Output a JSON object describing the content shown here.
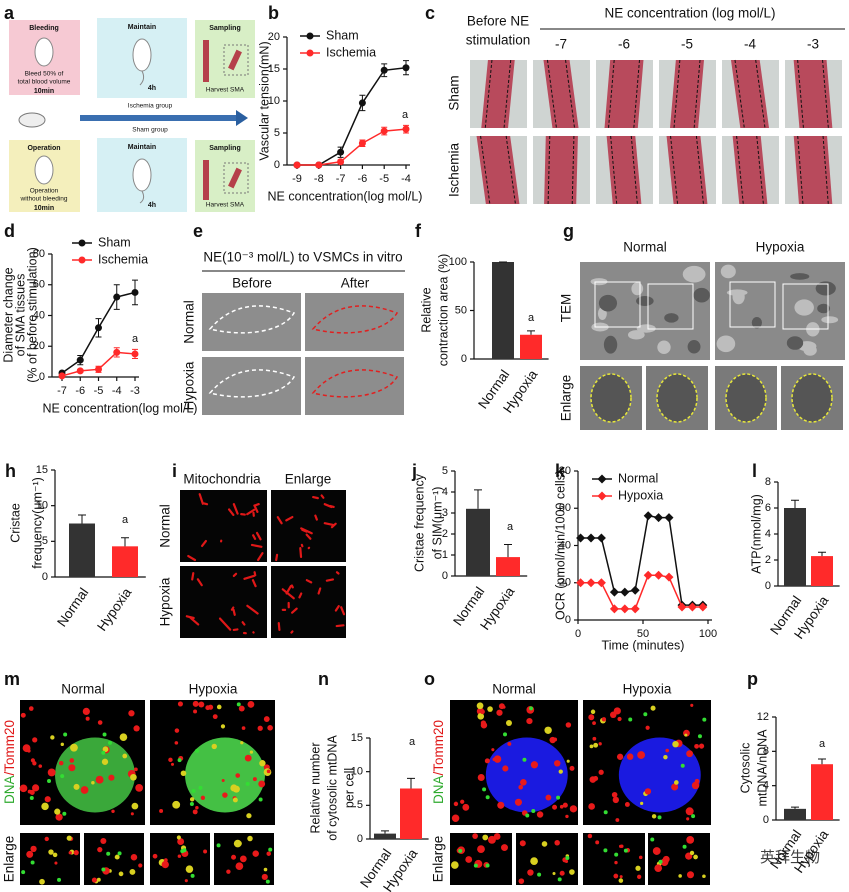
{
  "chart_data": [
    {
      "panel_label": "b",
      "type": "line",
      "marker": "circle",
      "xlabel": "NE concentration(log mol/L)",
      "ylabel": [
        "Vascular tension(mN)"
      ],
      "x": [
        -9,
        -8,
        -7,
        -6,
        -5,
        -4
      ],
      "xlim": [
        -9,
        -4
      ],
      "xticks": [
        -9,
        -8,
        -7,
        -6,
        -5,
        -4
      ],
      "ylim": [
        0,
        20
      ],
      "yticks": [
        0,
        5,
        10,
        15,
        20
      ],
      "series": [
        {
          "name": "Sham",
          "color": "#111111",
          "values": [
            0,
            0,
            2,
            9.7,
            14.8,
            15.2
          ],
          "errors": [
            0,
            0,
            0.8,
            1.2,
            1,
            1.1
          ]
        },
        {
          "name": "Ischemia",
          "color": "#ff2a2a",
          "values": [
            0,
            0,
            0.5,
            3.4,
            5.3,
            5.6
          ],
          "errors": [
            0,
            0,
            0.3,
            0.5,
            0.6,
            0.6
          ]
        }
      ],
      "annotation": "a",
      "legend": "upper left"
    },
    {
      "panel_label": "d",
      "type": "line",
      "marker": "circle",
      "xlabel": "NE concentration(log mol/L)",
      "ylabel": [
        "Diameter change",
        "of SMA tissues",
        "(% of before stimulation)"
      ],
      "x": [
        -7,
        -6,
        -5,
        -4,
        -3
      ],
      "xlim": [
        -7,
        -3
      ],
      "xticks": [
        -7,
        -6,
        -5,
        -4,
        -3
      ],
      "ylim": [
        0,
        80
      ],
      "yticks": [
        0,
        20,
        40,
        60,
        80
      ],
      "series": [
        {
          "name": "Sham",
          "color": "#111111",
          "values": [
            2.6,
            11,
            32,
            52,
            55
          ],
          "errors": [
            1,
            3,
            6,
            8,
            8
          ]
        },
        {
          "name": "Ischemia",
          "color": "#ff2a2a",
          "values": [
            0.7,
            4,
            5,
            16,
            15
          ],
          "errors": [
            1,
            1,
            2,
            3,
            3
          ]
        }
      ],
      "annotation": "a",
      "legend": "upper left"
    },
    {
      "panel_label": "f",
      "type": "bar",
      "ylabel": [
        "Relative",
        "contraction area (%)"
      ],
      "categories": [
        "Normal",
        "Hypoxia"
      ],
      "values": [
        100,
        25
      ],
      "errors": [
        0,
        4
      ],
      "colors": [
        "#333333",
        "#ff2a2a"
      ],
      "ylim": [
        0,
        100
      ],
      "yticks": [
        0,
        50,
        100
      ],
      "annotation": "a"
    },
    {
      "panel_label": "h",
      "type": "bar",
      "ylabel": [
        "Cristae",
        "frequency(μm⁻¹)"
      ],
      "categories": [
        "Normal",
        "Hypoxia"
      ],
      "values": [
        7.5,
        4.3
      ],
      "errors": [
        1.2,
        1.2
      ],
      "colors": [
        "#333333",
        "#ff2a2a"
      ],
      "ylim": [
        0,
        15
      ],
      "yticks": [
        0,
        5,
        10,
        15
      ],
      "annotation": "a"
    },
    {
      "panel_label": "j",
      "type": "bar",
      "ylabel": [
        "Cristae frequency",
        "of SIM(μm⁻¹)"
      ],
      "categories": [
        "Normal",
        "Hypoxia"
      ],
      "values": [
        3.2,
        0.9
      ],
      "errors": [
        0.9,
        0.6
      ],
      "colors": [
        "#333333",
        "#ff2a2a"
      ],
      "ylim": [
        0,
        5
      ],
      "yticks": [
        0,
        1,
        2,
        3,
        4,
        5
      ],
      "annotation": "a"
    },
    {
      "panel_label": "k",
      "type": "line",
      "marker": "diamond",
      "xlabel": "Time (minutes)",
      "ylabel": [
        "OCR (pmol/min/1000 cells)"
      ],
      "x": [
        2,
        10,
        18,
        28,
        36,
        44,
        54,
        62,
        70,
        80,
        88,
        96
      ],
      "xlim": [
        0,
        100
      ],
      "xticks": [
        0,
        50,
        100
      ],
      "ylim": [
        0,
        80
      ],
      "yticks": [
        0,
        20,
        40,
        60,
        80
      ],
      "series": [
        {
          "name": "Normal",
          "color": "#111111",
          "values": [
            44,
            44,
            44,
            15,
            15,
            16,
            56,
            55,
            55,
            8,
            8,
            8
          ]
        },
        {
          "name": "Hypoxia",
          "color": "#ff2a2a",
          "values": [
            20,
            20,
            20,
            6,
            6,
            6,
            24,
            24,
            23,
            7,
            7,
            7
          ]
        }
      ],
      "legend": "upper left"
    },
    {
      "panel_label": "l",
      "type": "bar",
      "ylabel": [
        "ATP(nmol/mg)"
      ],
      "categories": [
        "Normal",
        "Hypoxia"
      ],
      "values": [
        6,
        2.3
      ],
      "errors": [
        0.6,
        0.3
      ],
      "colors": [
        "#333333",
        "#ff2a2a"
      ],
      "ylim": [
        0,
        8
      ],
      "yticks": [
        0,
        2,
        4,
        6,
        8
      ]
    },
    {
      "panel_label": "n",
      "type": "bar",
      "ylabel": [
        "Relative number",
        "of cytosolic mtDNA",
        "per cell"
      ],
      "categories": [
        "Normal",
        "Hypoxia"
      ],
      "values": [
        0.8,
        7.5
      ],
      "errors": [
        0.4,
        1.5
      ],
      "colors": [
        "#333333",
        "#ff2a2a"
      ],
      "ylim": [
        0,
        15
      ],
      "yticks": [
        0,
        5,
        10,
        15
      ],
      "annotation": "a"
    },
    {
      "panel_label": "p",
      "type": "bar",
      "ylabel": [
        "Cytosolic",
        "mtDNA/nDNA"
      ],
      "categories": [
        "Normal",
        "Hypoxia"
      ],
      "values": [
        1.3,
        6.5
      ],
      "errors": [
        0.2,
        0.6
      ],
      "colors": [
        "#333333",
        "#ff2a2a"
      ],
      "ylim": [
        0,
        12
      ],
      "yticks": [
        0,
        4,
        8,
        12
      ],
      "annotation": "a"
    }
  ],
  "panels": {
    "a": {
      "panel_label": "a",
      "bleeding": {
        "title": "Bleeding",
        "note": [
          "Bleed 50% of",
          "total blood volume"
        ],
        "time": "10min"
      },
      "maintain_top": {
        "title": "Maintain",
        "time": "4h"
      },
      "sampling_top": {
        "title": "Sampling",
        "note": "Harvest SMA"
      },
      "ischemia_group": "Ischemia group",
      "sham_group": "Sham group",
      "operation": {
        "title": "Operation",
        "note": [
          "Operation",
          "without bleeding"
        ],
        "time": "10min"
      },
      "maintain_bottom": {
        "title": "Maintain",
        "time": "4h"
      },
      "sampling_bottom": {
        "title": "Sampling",
        "note": "Harvest SMA"
      }
    },
    "c": {
      "panel_label": "c",
      "before": [
        "Before NE",
        "stimulation"
      ],
      "header": "NE concentration (log mol/L)",
      "columns": [
        "-7",
        "-6",
        "-5",
        "-4",
        "-3"
      ],
      "rows": [
        "Sham",
        "Ischemia"
      ]
    },
    "e": {
      "panel_label": "e",
      "title": "NE(10⁻³ mol/L) to VSMCs in vitro",
      "columns": [
        "Before",
        "After"
      ],
      "rows": [
        "Normal",
        "Hypoxia"
      ]
    },
    "g": {
      "panel_label": "g",
      "columns": [
        "Normal",
        "Hypoxia"
      ],
      "rows": [
        "TEM",
        "Enlarge"
      ]
    },
    "i": {
      "panel_label": "i",
      "columns": [
        "Mitochondria",
        "Enlarge"
      ],
      "rows": [
        "Normal",
        "Hypoxia"
      ]
    },
    "m": {
      "panel_label": "m",
      "columns": [
        "Normal",
        "Hypoxia"
      ],
      "stain": [
        "DNA",
        "/Tomm20"
      ],
      "enlarge": "Enlarge"
    },
    "o": {
      "panel_label": "o",
      "columns": [
        "Normal",
        "Hypoxia"
      ],
      "stain": [
        "DNA",
        "/Tomm20"
      ],
      "enlarge": "Enlarge"
    },
    "watermark": "英拜生物"
  }
}
